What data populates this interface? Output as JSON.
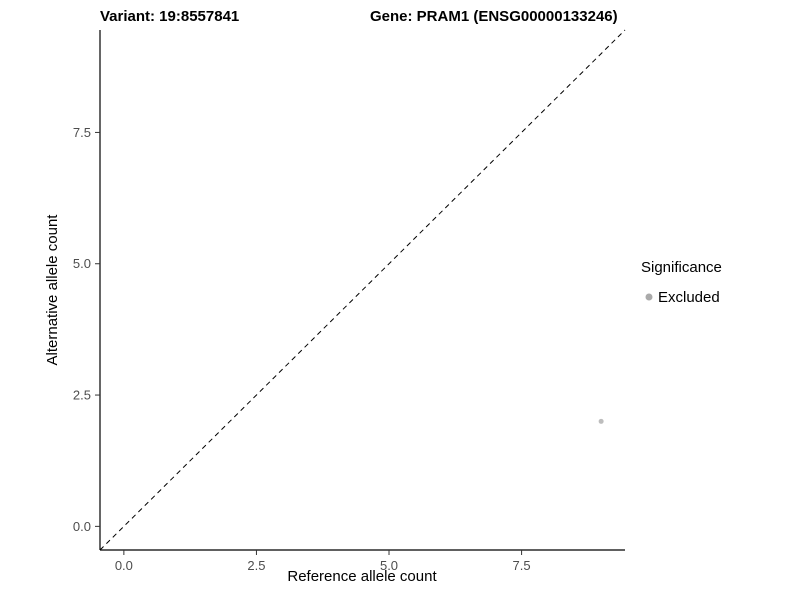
{
  "chart_data": {
    "type": "scatter",
    "title_left": "Variant: 19:8557841",
    "title_right": "Gene: PRAM1 (ENSG00000133246)",
    "xlabel": "Reference allele count",
    "ylabel": "Alternative allele count",
    "xlim": [
      -0.45,
      9.45
    ],
    "ylim": [
      -0.45,
      9.45
    ],
    "xticks": [
      0.0,
      2.5,
      5.0,
      7.5
    ],
    "yticks": [
      0.0,
      2.5,
      5.0,
      7.5
    ],
    "grid": false,
    "points": [
      {
        "x": 9,
        "y": 2,
        "significance": "Excluded"
      }
    ],
    "point_color": "#bdbdbd",
    "point_radius": 2.5,
    "identity_line": {
      "slope": 1,
      "intercept": 0,
      "style": "dashed",
      "color": "#000000"
    },
    "axis_color": "#000000",
    "tick_color": "#333333",
    "tick_label_color": "#4d4d4d",
    "legend": {
      "title": "Significance",
      "position": "right",
      "entries": [
        {
          "label": "Excluded",
          "color": "#aaaaaa"
        }
      ]
    }
  }
}
